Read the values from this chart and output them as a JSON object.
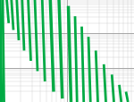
{
  "bg_color": "#ffffff",
  "grid_major_color": "#999999",
  "grid_minor_color": "#cccccc",
  "line_color": "#00aa44",
  "xlim_log": [
    1.0,
    3.0
  ],
  "ylim_log": [
    -1.0,
    2.0
  ],
  "curves": [
    {
      "x_top_log": 1.0,
      "x_bot_log": 1.02,
      "y_top_log": 2.0,
      "y_bot_log": -1.0,
      "lw": 2.5
    },
    {
      "x_top_log": 1.04,
      "x_bot_log": 1.06,
      "y_top_log": 2.0,
      "y_bot_log": -1.0,
      "lw": 2.0
    },
    {
      "x_top_log": 1.1,
      "x_bot_log": 1.13,
      "y_top_log": 2.0,
      "y_bot_log": 1.3,
      "lw": 2.0
    },
    {
      "x_top_log": 1.17,
      "x_bot_log": 1.2,
      "y_top_log": 2.0,
      "y_bot_log": 1.1,
      "lw": 2.0
    },
    {
      "x_top_log": 1.25,
      "x_bot_log": 1.28,
      "y_top_log": 2.0,
      "y_bot_log": 0.8,
      "lw": 2.0
    },
    {
      "x_top_log": 1.33,
      "x_bot_log": 1.36,
      "y_top_log": 2.0,
      "y_bot_log": 0.5,
      "lw": 2.0
    },
    {
      "x_top_log": 1.42,
      "x_bot_log": 1.46,
      "y_top_log": 2.0,
      "y_bot_log": 0.2,
      "lw": 2.0
    },
    {
      "x_top_log": 1.52,
      "x_bot_log": 1.56,
      "y_top_log": 2.0,
      "y_bot_log": -0.1,
      "lw": 2.0
    },
    {
      "x_top_log": 1.63,
      "x_bot_log": 1.67,
      "y_top_log": 2.0,
      "y_bot_log": -0.4,
      "lw": 2.0
    },
    {
      "x_top_log": 1.75,
      "x_bot_log": 1.8,
      "y_top_log": 2.0,
      "y_bot_log": -0.7,
      "lw": 2.5
    },
    {
      "x_top_log": 1.88,
      "x_bot_log": 1.93,
      "y_top_log": 2.0,
      "y_bot_log": -0.9,
      "lw": 2.5
    },
    {
      "x_top_log": 2.02,
      "x_bot_log": 2.06,
      "y_top_log": 1.8,
      "y_bot_log": -1.0,
      "lw": 2.5
    },
    {
      "x_top_log": 2.12,
      "x_bot_log": 2.15,
      "y_top_log": 1.5,
      "y_bot_log": -1.0,
      "lw": 2.0
    },
    {
      "x_top_log": 2.22,
      "x_bot_log": 2.25,
      "y_top_log": 1.2,
      "y_bot_log": -1.0,
      "lw": 2.0
    },
    {
      "x_top_log": 2.32,
      "x_bot_log": 2.35,
      "y_top_log": 0.9,
      "y_bot_log": -1.0,
      "lw": 2.0
    },
    {
      "x_top_log": 2.43,
      "x_bot_log": 2.46,
      "y_top_log": 0.5,
      "y_bot_log": -1.0,
      "lw": 2.0
    },
    {
      "x_top_log": 2.55,
      "x_bot_log": 2.58,
      "y_top_log": 0.1,
      "y_bot_log": -1.0,
      "lw": 2.0
    },
    {
      "x_top_log": 2.67,
      "x_bot_log": 2.7,
      "y_top_log": -0.2,
      "y_bot_log": -1.0,
      "lw": 2.0
    },
    {
      "x_top_log": 2.78,
      "x_bot_log": 2.81,
      "y_top_log": -0.5,
      "y_bot_log": -1.0,
      "lw": 2.0
    },
    {
      "x_top_log": 2.88,
      "x_bot_log": 2.91,
      "y_top_log": -0.7,
      "y_bot_log": -1.0,
      "lw": 2.0
    }
  ]
}
